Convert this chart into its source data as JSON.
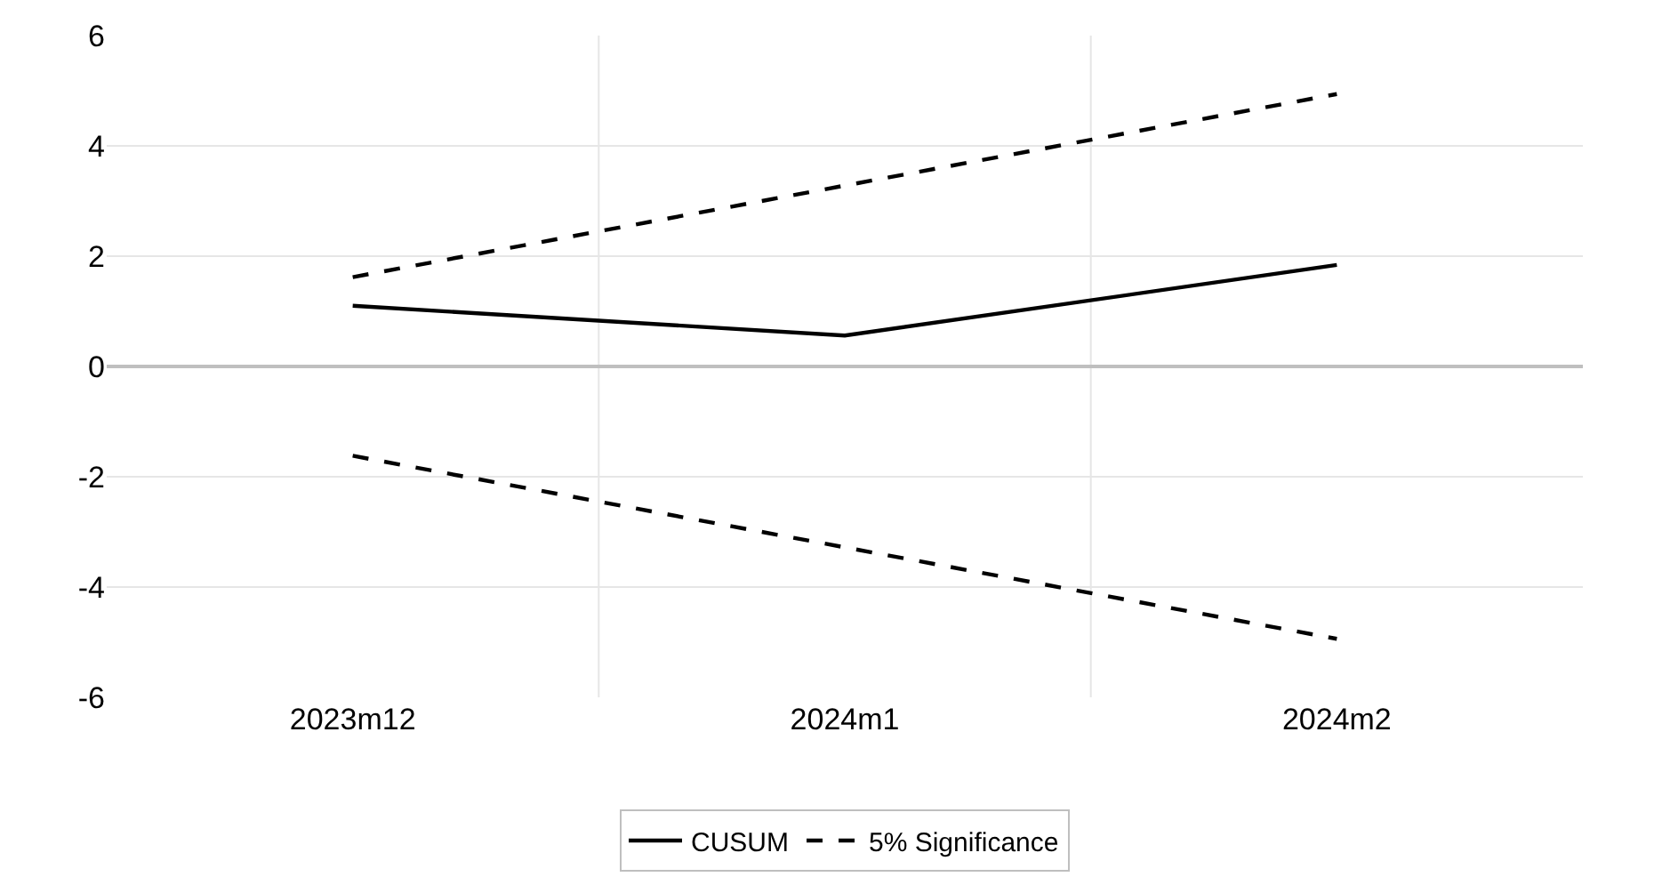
{
  "chart_data": {
    "type": "line",
    "categories": [
      "2023m12",
      "2024m1",
      "2024m2"
    ],
    "series": [
      {
        "name": "CUSUM",
        "color": "#000000",
        "values": [
          1.1,
          0.56,
          1.84
        ],
        "line_style": "solid"
      },
      {
        "name": "5% Significance",
        "color": "#000000",
        "values": [
          1.62,
          3.28,
          4.94
        ],
        "line_style": "dashed"
      },
      {
        "color": "#000000",
        "values": [
          -1.62,
          -3.28,
          -4.94
        ],
        "line_style": "dashed"
      }
    ],
    "ylim": [
      -6,
      6
    ],
    "yticks": [
      -6,
      -4,
      -2,
      0,
      2,
      4,
      6
    ],
    "grid": true,
    "legend": "bottom",
    "marker": "none"
  }
}
